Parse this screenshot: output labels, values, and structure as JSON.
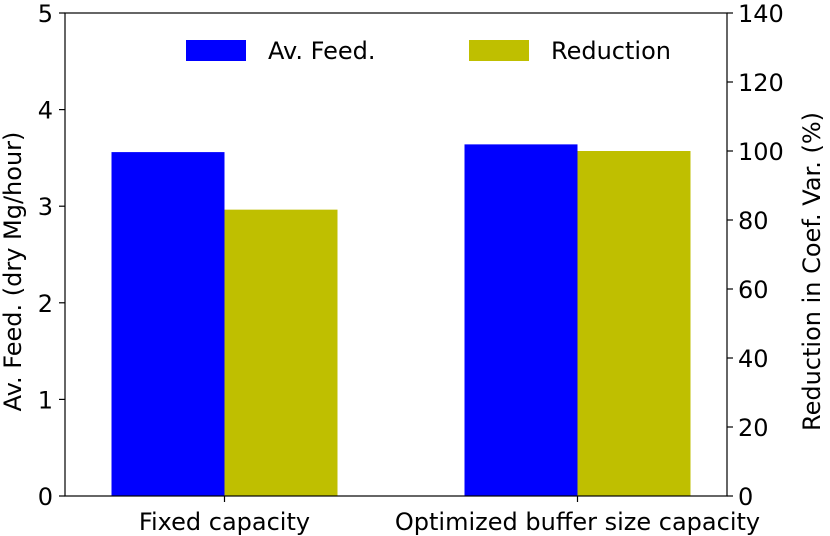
{
  "chart_data": {
    "type": "bar",
    "categories": [
      "Fixed capacity",
      "Optimized buffer size capacity"
    ],
    "series": [
      {
        "name": "Av. Feed.",
        "axis": "left",
        "color": "#0000ff",
        "values": [
          3.56,
          3.64
        ]
      },
      {
        "name": "Reduction",
        "axis": "right",
        "color": "#bfbf00",
        "values": [
          83,
          100
        ]
      }
    ],
    "y_left": {
      "label": "Av. Feed. (dry Mg/hour)",
      "lim": [
        0,
        5
      ],
      "ticks": [
        0,
        1,
        2,
        3,
        4,
        5
      ],
      "tick_labels": [
        "0",
        "1",
        "2",
        "3",
        "4",
        "5"
      ]
    },
    "y_right": {
      "label": "Reduction in Coef. Var. (%)",
      "lim": [
        0,
        140
      ],
      "ticks": [
        0,
        20,
        40,
        60,
        80,
        100,
        120,
        140
      ],
      "tick_labels": [
        "0",
        "20",
        "40",
        "60",
        "80",
        "100",
        "120",
        "140"
      ]
    },
    "legend_position": "top-right",
    "grid": false
  }
}
